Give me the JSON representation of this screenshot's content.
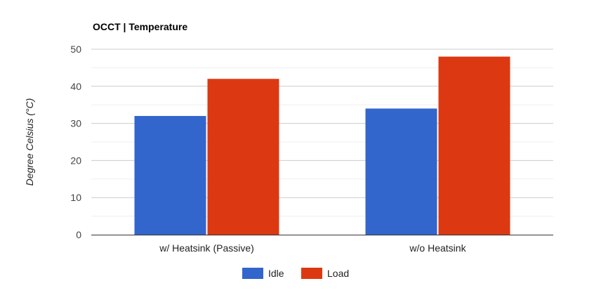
{
  "chart_data": {
    "type": "bar",
    "title": "OCCT | Temperature",
    "xlabel": "",
    "ylabel": "Degree Celsius (°C)",
    "categories": [
      "w/ Heatsink (Passive)",
      "w/o Heatsink"
    ],
    "series": [
      {
        "name": "Idle",
        "values": [
          32,
          34
        ],
        "color": "#3366cc"
      },
      {
        "name": "Load",
        "values": [
          42,
          48
        ],
        "color": "#dc3912"
      }
    ],
    "ylim": [
      0,
      50
    ],
    "yticks": [
      0,
      10,
      20,
      30,
      40,
      50
    ],
    "grid": true,
    "legend_position": "bottom"
  }
}
